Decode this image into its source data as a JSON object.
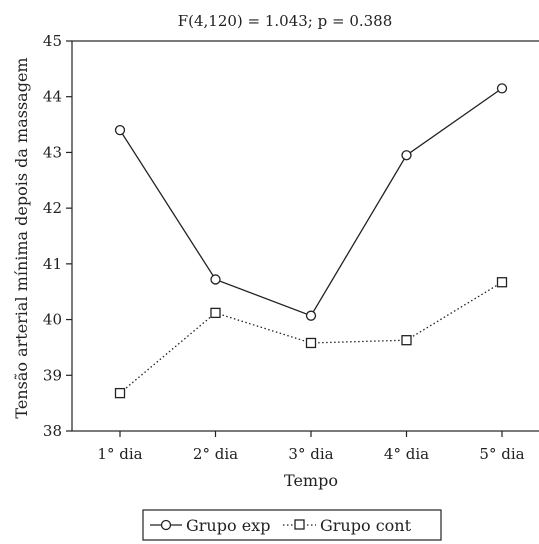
{
  "chart_data": {
    "type": "line",
    "title": "F(4,120) = 1.043; p = 0.388",
    "xlabel": "Tempo",
    "ylabel": "Tensão arterial mínima depois da massagem",
    "categories": [
      "1° dia",
      "2° dia",
      "3° dia",
      "4° dia",
      "5° dia"
    ],
    "ylim": [
      38,
      45
    ],
    "yticks": [
      "38",
      "39",
      "40",
      "41",
      "42",
      "43",
      "44",
      "45"
    ],
    "grid": false,
    "legend_position": "bottom",
    "series": [
      {
        "name": "Grupo exp",
        "values": [
          43.4,
          40.72,
          40.07,
          42.95,
          44.15
        ],
        "marker": "circle",
        "line_style": "solid",
        "color": "#222222"
      },
      {
        "name": "Grupo cont",
        "values": [
          38.68,
          40.12,
          39.58,
          39.63,
          40.67
        ],
        "marker": "square",
        "line_style": "dotted",
        "color": "#222222"
      }
    ]
  }
}
